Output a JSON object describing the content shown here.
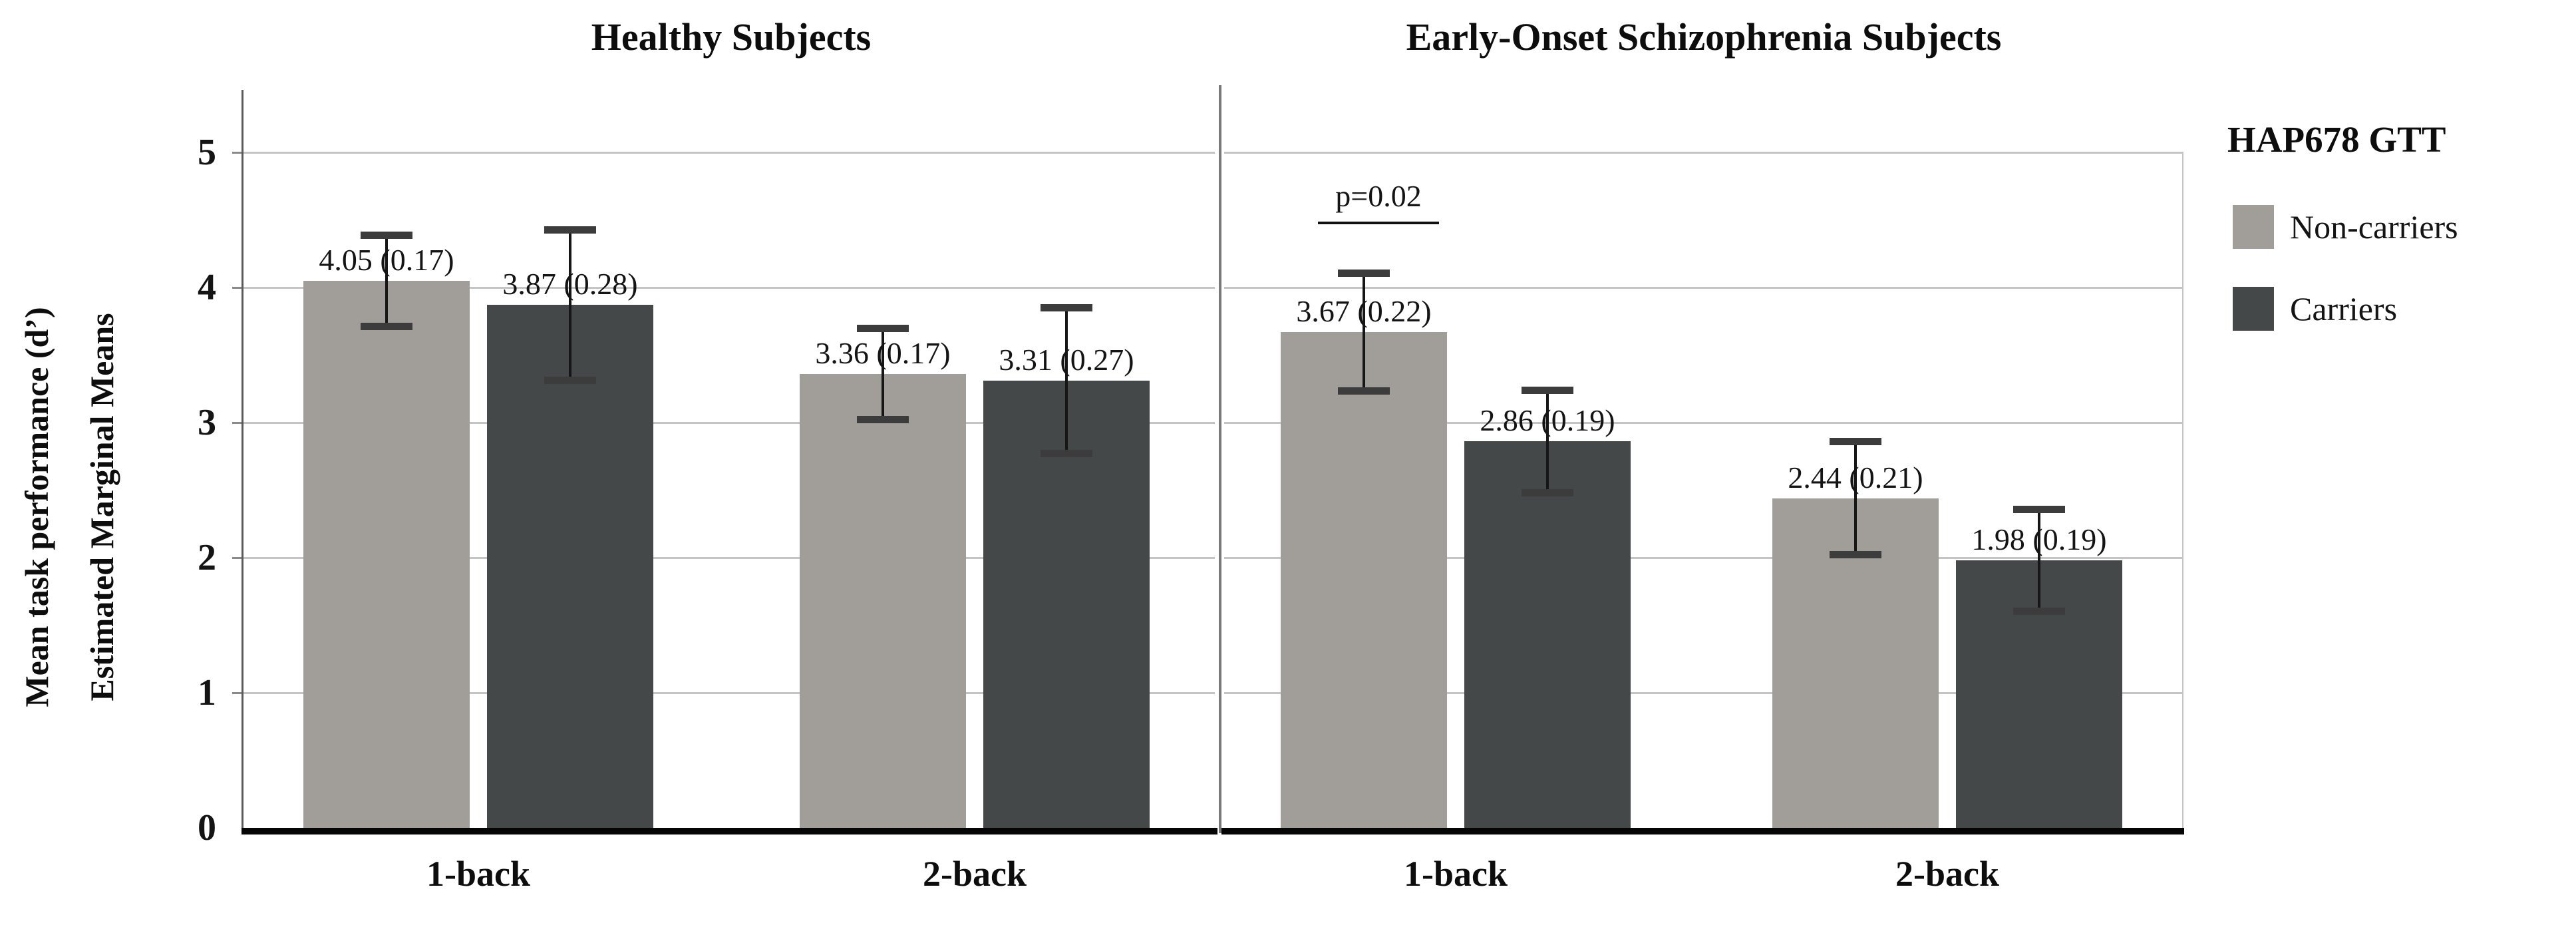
{
  "figure": {
    "y_axis_title_line1": "Mean task performance (d’)",
    "y_axis_title_line2": "Estimated Marginal Means",
    "y_tick_labels": [
      "5",
      "4",
      "3",
      "2",
      "1",
      "0"
    ]
  },
  "legend": {
    "title": "HAP678 GTT",
    "items": [
      {
        "label": "Non-carriers",
        "color": "#a19d99"
      },
      {
        "label": "Carriers",
        "color": "#454849"
      }
    ]
  },
  "annotation": {
    "text": "p=0.02"
  },
  "colors": {
    "non_carriers_bar": "#a19d99",
    "carriers_bar": "#454849",
    "gridline": "#c4c4c4",
    "baseline": "#050505",
    "error_bar": "#161616"
  },
  "chart_data": {
    "type": "bar",
    "title": "",
    "ylabel": "Mean task performance (d’) Estimated Marginal Means",
    "xlabel": "",
    "ylim": [
      0,
      5
    ],
    "yticks": [
      0,
      1,
      2,
      3,
      4,
      5
    ],
    "grid": true,
    "legend_position": "right",
    "legend_title": "HAP678 GTT",
    "error_bars": "whiskers span approximately ±2 SE around each mean",
    "panels": [
      {
        "title": "Healthy Subjects",
        "categories": [
          "1-back",
          "2-back"
        ],
        "series": [
          {
            "name": "Non-carriers",
            "values": [
              4.05,
              3.36
            ],
            "se": [
              0.17,
              0.17
            ],
            "labels": [
              "4.05 (0.17)",
              "3.36 (0.17)"
            ]
          },
          {
            "name": "Carriers",
            "values": [
              3.87,
              3.31
            ],
            "se": [
              0.28,
              0.27
            ],
            "labels": [
              "3.87 (0.28)",
              "3.31 (0.27)"
            ]
          }
        ],
        "annotation": null
      },
      {
        "title": "Early-Onset Schizophrenia Subjects",
        "categories": [
          "1-back",
          "2-back"
        ],
        "series": [
          {
            "name": "Non-carriers",
            "values": [
              3.67,
              2.44
            ],
            "se": [
              0.22,
              0.21
            ],
            "labels": [
              "3.67 (0.22)",
              "2.44 (0.21)"
            ]
          },
          {
            "name": "Carriers",
            "values": [
              2.86,
              1.98
            ],
            "se": [
              0.19,
              0.19
            ],
            "labels": [
              "2.86 (0.19)",
              "1.98 (0.19)"
            ]
          }
        ],
        "annotation": {
          "text": "p=0.02",
          "over_category": "1-back",
          "over_series": "Non-carriers"
        }
      }
    ]
  }
}
